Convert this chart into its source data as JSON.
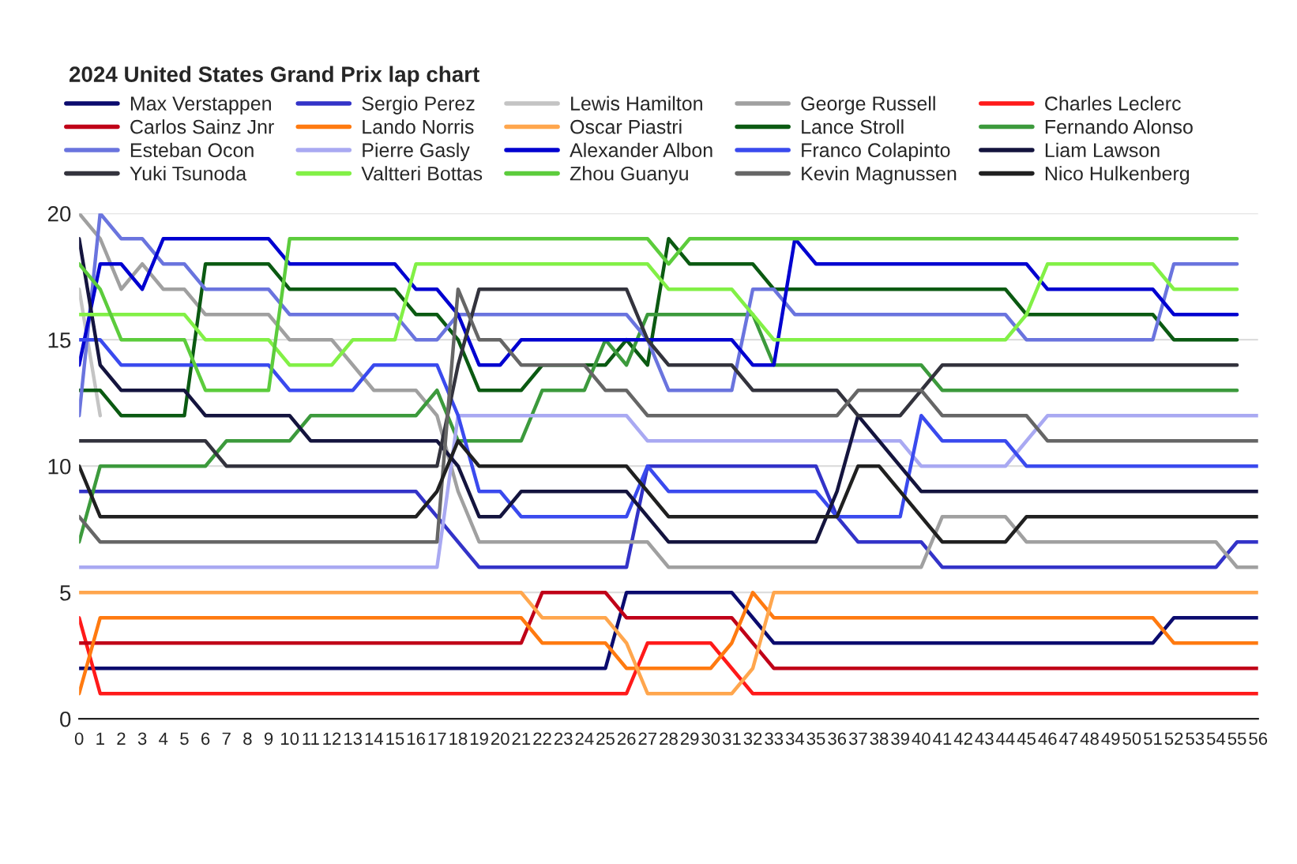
{
  "chart_data": {
    "type": "line",
    "title": "2024 United States Grand Prix lap chart",
    "x": [
      0,
      1,
      2,
      3,
      4,
      5,
      6,
      7,
      8,
      9,
      10,
      11,
      12,
      13,
      14,
      15,
      16,
      17,
      18,
      19,
      20,
      21,
      22,
      23,
      24,
      25,
      26,
      27,
      28,
      29,
      30,
      31,
      32,
      33,
      34,
      35,
      36,
      37,
      38,
      39,
      40,
      41,
      42,
      43,
      44,
      45,
      46,
      47,
      48,
      49,
      50,
      51,
      52,
      53,
      54,
      55,
      56
    ],
    "xlim": [
      0,
      56
    ],
    "xticks": [
      0,
      1,
      2,
      3,
      4,
      5,
      6,
      7,
      8,
      9,
      10,
      11,
      12,
      13,
      14,
      15,
      16,
      17,
      18,
      19,
      20,
      21,
      22,
      23,
      24,
      25,
      26,
      27,
      28,
      29,
      30,
      31,
      32,
      33,
      34,
      35,
      36,
      37,
      38,
      39,
      40,
      41,
      42,
      43,
      44,
      45,
      46,
      47,
      48,
      49,
      50,
      51,
      52,
      53,
      54,
      55,
      56
    ],
    "ylim": [
      0,
      20
    ],
    "yticks": [
      0,
      5,
      10,
      15,
      20
    ],
    "grid": "y",
    "legend": "top",
    "marker": "none",
    "line_style": "solid",
    "series": [
      {
        "name": "Max Verstappen",
        "color": "#0b0b6e",
        "values": [
          2,
          2,
          2,
          2,
          2,
          2,
          2,
          2,
          2,
          2,
          2,
          2,
          2,
          2,
          2,
          2,
          2,
          2,
          2,
          2,
          2,
          2,
          2,
          2,
          2,
          2,
          5,
          5,
          5,
          5,
          5,
          5,
          4,
          3,
          3,
          3,
          3,
          3,
          3,
          3,
          3,
          3,
          3,
          3,
          3,
          3,
          3,
          3,
          3,
          3,
          3,
          3,
          4,
          4,
          4,
          4,
          4
        ]
      },
      {
        "name": "Sergio Perez",
        "color": "#3333c8",
        "values": [
          9,
          9,
          9,
          9,
          9,
          9,
          9,
          9,
          9,
          9,
          9,
          9,
          9,
          9,
          9,
          9,
          9,
          8,
          7,
          6,
          6,
          6,
          6,
          6,
          6,
          6,
          6,
          10,
          10,
          10,
          10,
          10,
          10,
          10,
          10,
          10,
          8,
          7,
          7,
          7,
          7,
          6,
          6,
          6,
          6,
          6,
          6,
          6,
          6,
          6,
          6,
          6,
          6,
          6,
          6,
          7,
          7
        ]
      },
      {
        "name": "Lewis Hamilton",
        "color": "#c4c4c4",
        "values": [
          17,
          12,
          null,
          null,
          null,
          null,
          null,
          null,
          null,
          null,
          null,
          null,
          null,
          null,
          null,
          null,
          null,
          null,
          null,
          null,
          null,
          null,
          null,
          null,
          null,
          null,
          null,
          null,
          null,
          null,
          null,
          null,
          null,
          null,
          null,
          null,
          null,
          null,
          null,
          null,
          null,
          null,
          null,
          null,
          null,
          null,
          null,
          null,
          null,
          null,
          null,
          null,
          null,
          null,
          null,
          null,
          null
        ]
      },
      {
        "name": "George Russell",
        "color": "#a0a0a0",
        "values": [
          20,
          19,
          17,
          18,
          17,
          17,
          16,
          16,
          16,
          16,
          15,
          15,
          15,
          14,
          13,
          13,
          13,
          12,
          9,
          7,
          7,
          7,
          7,
          7,
          7,
          7,
          7,
          7,
          6,
          6,
          6,
          6,
          6,
          6,
          6,
          6,
          6,
          6,
          6,
          6,
          6,
          8,
          8,
          8,
          8,
          7,
          7,
          7,
          7,
          7,
          7,
          7,
          7,
          7,
          7,
          6,
          6
        ]
      },
      {
        "name": "Charles Leclerc",
        "color": "#ff1a1a",
        "values": [
          4,
          1,
          1,
          1,
          1,
          1,
          1,
          1,
          1,
          1,
          1,
          1,
          1,
          1,
          1,
          1,
          1,
          1,
          1,
          1,
          1,
          1,
          1,
          1,
          1,
          1,
          1,
          3,
          3,
          3,
          3,
          2,
          1,
          1,
          1,
          1,
          1,
          1,
          1,
          1,
          1,
          1,
          1,
          1,
          1,
          1,
          1,
          1,
          1,
          1,
          1,
          1,
          1,
          1,
          1,
          1,
          1
        ]
      },
      {
        "name": "Carlos Sainz Jnr",
        "color": "#c00018",
        "values": [
          3,
          3,
          3,
          3,
          3,
          3,
          3,
          3,
          3,
          3,
          3,
          3,
          3,
          3,
          3,
          3,
          3,
          3,
          3,
          3,
          3,
          3,
          5,
          5,
          5,
          5,
          4,
          4,
          4,
          4,
          4,
          4,
          3,
          2,
          2,
          2,
          2,
          2,
          2,
          2,
          2,
          2,
          2,
          2,
          2,
          2,
          2,
          2,
          2,
          2,
          2,
          2,
          2,
          2,
          2,
          2,
          2
        ]
      },
      {
        "name": "Lando Norris",
        "color": "#ff7a10",
        "values": [
          1,
          4,
          4,
          4,
          4,
          4,
          4,
          4,
          4,
          4,
          4,
          4,
          4,
          4,
          4,
          4,
          4,
          4,
          4,
          4,
          4,
          4,
          3,
          3,
          3,
          3,
          2,
          2,
          2,
          2,
          2,
          3,
          5,
          4,
          4,
          4,
          4,
          4,
          4,
          4,
          4,
          4,
          4,
          4,
          4,
          4,
          4,
          4,
          4,
          4,
          4,
          4,
          3,
          3,
          3,
          3,
          3
        ]
      },
      {
        "name": "Oscar Piastri",
        "color": "#ffa64d",
        "values": [
          5,
          5,
          5,
          5,
          5,
          5,
          5,
          5,
          5,
          5,
          5,
          5,
          5,
          5,
          5,
          5,
          5,
          5,
          5,
          5,
          5,
          5,
          4,
          4,
          4,
          4,
          3,
          1,
          1,
          1,
          1,
          1,
          2,
          5,
          5,
          5,
          5,
          5,
          5,
          5,
          5,
          5,
          5,
          5,
          5,
          5,
          5,
          5,
          5,
          5,
          5,
          5,
          5,
          5,
          5,
          5,
          5
        ]
      },
      {
        "name": "Lance Stroll",
        "color": "#0b5a12",
        "values": [
          13,
          13,
          12,
          12,
          12,
          12,
          18,
          18,
          18,
          18,
          17,
          17,
          17,
          17,
          17,
          17,
          16,
          16,
          15,
          13,
          13,
          13,
          14,
          14,
          14,
          14,
          15,
          14,
          19,
          18,
          18,
          18,
          18,
          17,
          17,
          17,
          17,
          17,
          17,
          17,
          17,
          17,
          17,
          17,
          17,
          16,
          16,
          16,
          16,
          16,
          16,
          16,
          15,
          15,
          15,
          15,
          null
        ]
      },
      {
        "name": "Fernando Alonso",
        "color": "#3c9a3c",
        "values": [
          7,
          10,
          10,
          10,
          10,
          10,
          10,
          11,
          11,
          11,
          11,
          12,
          12,
          12,
          12,
          12,
          12,
          13,
          11,
          11,
          11,
          11,
          13,
          13,
          13,
          15,
          14,
          16,
          16,
          16,
          16,
          16,
          16,
          14,
          14,
          14,
          14,
          14,
          14,
          14,
          14,
          13,
          13,
          13,
          13,
          13,
          13,
          13,
          13,
          13,
          13,
          13,
          13,
          13,
          13,
          13,
          null
        ]
      },
      {
        "name": "Esteban Ocon",
        "color": "#6a74de",
        "values": [
          12,
          20,
          19,
          19,
          18,
          18,
          17,
          17,
          17,
          17,
          16,
          16,
          16,
          16,
          16,
          16,
          15,
          15,
          16,
          16,
          16,
          16,
          16,
          16,
          16,
          16,
          16,
          15,
          13,
          13,
          13,
          13,
          17,
          17,
          16,
          16,
          16,
          16,
          16,
          16,
          16,
          16,
          16,
          16,
          16,
          15,
          15,
          15,
          15,
          15,
          15,
          15,
          18,
          18,
          18,
          18,
          null
        ]
      },
      {
        "name": "Pierre Gasly",
        "color": "#a9a9f2",
        "values": [
          6,
          6,
          6,
          6,
          6,
          6,
          6,
          6,
          6,
          6,
          6,
          6,
          6,
          6,
          6,
          6,
          6,
          6,
          12,
          12,
          12,
          12,
          12,
          12,
          12,
          12,
          12,
          11,
          11,
          11,
          11,
          11,
          11,
          11,
          11,
          11,
          11,
          11,
          11,
          11,
          10,
          10,
          10,
          10,
          10,
          11,
          12,
          12,
          12,
          12,
          12,
          12,
          12,
          12,
          12,
          12,
          12
        ]
      },
      {
        "name": "Alexander Albon",
        "color": "#0000d0",
        "values": [
          14,
          18,
          18,
          17,
          19,
          19,
          19,
          19,
          19,
          19,
          18,
          18,
          18,
          18,
          18,
          18,
          17,
          17,
          16,
          14,
          14,
          15,
          15,
          15,
          15,
          15,
          15,
          15,
          15,
          15,
          15,
          15,
          14,
          14,
          19,
          18,
          18,
          18,
          18,
          18,
          18,
          18,
          18,
          18,
          18,
          18,
          17,
          17,
          17,
          17,
          17,
          17,
          16,
          16,
          16,
          16,
          null
        ]
      },
      {
        "name": "Franco Colapinto",
        "color": "#3a4aee",
        "values": [
          15,
          15,
          14,
          14,
          14,
          14,
          14,
          14,
          14,
          14,
          13,
          13,
          13,
          13,
          14,
          14,
          14,
          14,
          12,
          9,
          9,
          8,
          8,
          8,
          8,
          8,
          8,
          10,
          9,
          9,
          9,
          9,
          9,
          9,
          9,
          9,
          8,
          8,
          8,
          8,
          12,
          11,
          11,
          11,
          11,
          10,
          10,
          10,
          10,
          10,
          10,
          10,
          10,
          10,
          10,
          10,
          10
        ]
      },
      {
        "name": "Liam Lawson",
        "color": "#14143e",
        "values": [
          19,
          14,
          13,
          13,
          13,
          13,
          12,
          12,
          12,
          12,
          12,
          11,
          11,
          11,
          11,
          11,
          11,
          11,
          10,
          8,
          8,
          9,
          9,
          9,
          9,
          9,
          9,
          8,
          7,
          7,
          7,
          7,
          7,
          7,
          7,
          7,
          9,
          12,
          11,
          10,
          9,
          9,
          9,
          9,
          9,
          9,
          9,
          9,
          9,
          9,
          9,
          9,
          9,
          9,
          9,
          9,
          9
        ]
      },
      {
        "name": "Yuki Tsunoda",
        "color": "#33333d",
        "values": [
          11,
          11,
          11,
          11,
          11,
          11,
          11,
          10,
          10,
          10,
          10,
          10,
          10,
          10,
          10,
          10,
          10,
          10,
          14,
          17,
          17,
          17,
          17,
          17,
          17,
          17,
          17,
          15,
          14,
          14,
          14,
          14,
          13,
          13,
          13,
          13,
          13,
          12,
          12,
          12,
          13,
          14,
          14,
          14,
          14,
          14,
          14,
          14,
          14,
          14,
          14,
          14,
          14,
          14,
          14,
          14,
          null
        ]
      },
      {
        "name": "Valtteri Bottas",
        "color": "#82f046",
        "values": [
          16,
          16,
          16,
          16,
          16,
          16,
          15,
          15,
          15,
          15,
          14,
          14,
          14,
          15,
          15,
          15,
          18,
          18,
          18,
          18,
          18,
          18,
          18,
          18,
          18,
          18,
          18,
          18,
          17,
          17,
          17,
          17,
          16,
          15,
          15,
          15,
          15,
          15,
          15,
          15,
          15,
          15,
          15,
          15,
          15,
          16,
          18,
          18,
          18,
          18,
          18,
          18,
          17,
          17,
          17,
          17,
          null
        ]
      },
      {
        "name": "Zhou Guanyu",
        "color": "#5ccc3c",
        "values": [
          18,
          17,
          15,
          15,
          15,
          15,
          13,
          13,
          13,
          13,
          19,
          19,
          19,
          19,
          19,
          19,
          19,
          19,
          19,
          19,
          19,
          19,
          19,
          19,
          19,
          19,
          19,
          19,
          18,
          19,
          19,
          19,
          19,
          19,
          19,
          19,
          19,
          19,
          19,
          19,
          19,
          19,
          19,
          19,
          19,
          19,
          19,
          19,
          19,
          19,
          19,
          19,
          19,
          19,
          19,
          19,
          null
        ]
      },
      {
        "name": "Kevin Magnussen",
        "color": "#666666",
        "values": [
          8,
          7,
          7,
          7,
          7,
          7,
          7,
          7,
          7,
          7,
          7,
          7,
          7,
          7,
          7,
          7,
          7,
          7,
          17,
          15,
          15,
          14,
          14,
          14,
          14,
          13,
          13,
          12,
          12,
          12,
          12,
          12,
          12,
          12,
          12,
          12,
          12,
          13,
          13,
          13,
          13,
          12,
          12,
          12,
          12,
          12,
          11,
          11,
          11,
          11,
          11,
          11,
          11,
          11,
          11,
          11,
          11
        ]
      },
      {
        "name": "Nico Hulkenberg",
        "color": "#202020",
        "values": [
          10,
          8,
          8,
          8,
          8,
          8,
          8,
          8,
          8,
          8,
          8,
          8,
          8,
          8,
          8,
          8,
          8,
          9,
          11,
          10,
          10,
          10,
          10,
          10,
          10,
          10,
          10,
          9,
          8,
          8,
          8,
          8,
          8,
          8,
          8,
          8,
          8,
          10,
          10,
          9,
          8,
          7,
          7,
          7,
          7,
          8,
          8,
          8,
          8,
          8,
          8,
          8,
          8,
          8,
          8,
          8,
          8
        ]
      }
    ]
  }
}
